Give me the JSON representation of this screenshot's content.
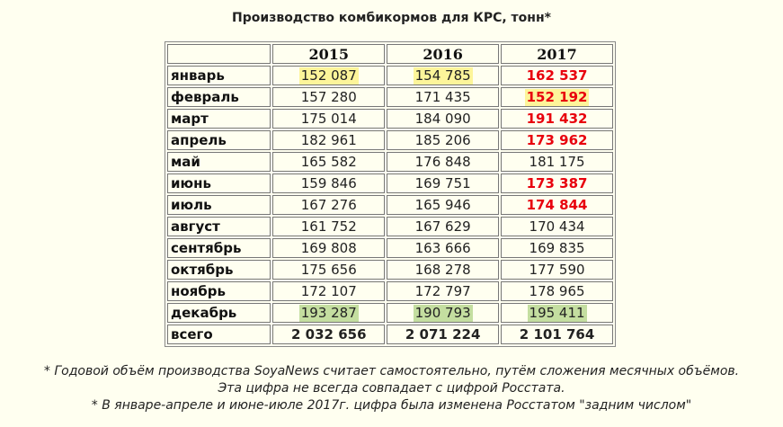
{
  "title": "Производство комбикормов для КРС, тонн*",
  "colors": {
    "highlight_yellow": "#fdf59a",
    "highlight_green": "#c4dea0",
    "red_text": "#e8000d",
    "background": "#fffff0"
  },
  "table": {
    "header": [
      "",
      "2015",
      "2016",
      "2017"
    ],
    "rows": [
      {
        "month": "январь",
        "values": [
          "152 087",
          "154 785",
          "162 537"
        ],
        "highlight": [
          "yellow",
          "yellow",
          "none"
        ],
        "red": [
          false,
          false,
          true
        ]
      },
      {
        "month": "февраль",
        "values": [
          "157 280",
          "171 435",
          "152 192"
        ],
        "highlight": [
          "none",
          "none",
          "yellow"
        ],
        "red": [
          false,
          false,
          true
        ]
      },
      {
        "month": "март",
        "values": [
          "175 014",
          "184 090",
          "191 432"
        ],
        "highlight": [
          "none",
          "none",
          "none"
        ],
        "red": [
          false,
          false,
          true
        ]
      },
      {
        "month": "апрель",
        "values": [
          "182 961",
          "185 206",
          "173 962"
        ],
        "highlight": [
          "none",
          "none",
          "none"
        ],
        "red": [
          false,
          false,
          true
        ]
      },
      {
        "month": "май",
        "values": [
          "165 582",
          "176 848",
          "181 175"
        ],
        "highlight": [
          "none",
          "none",
          "none"
        ],
        "red": [
          false,
          false,
          false
        ]
      },
      {
        "month": "июнь",
        "values": [
          "159 846",
          "169 751",
          "173 387"
        ],
        "highlight": [
          "none",
          "none",
          "none"
        ],
        "red": [
          false,
          false,
          true
        ]
      },
      {
        "month": "июль",
        "values": [
          "167 276",
          "165 946",
          "174 844"
        ],
        "highlight": [
          "none",
          "none",
          "none"
        ],
        "red": [
          false,
          false,
          true
        ]
      },
      {
        "month": "август",
        "values": [
          "161 752",
          "167 629",
          "170 434"
        ],
        "highlight": [
          "none",
          "none",
          "none"
        ],
        "red": [
          false,
          false,
          false
        ]
      },
      {
        "month": "сентябрь",
        "values": [
          "169 808",
          "163 666",
          "169 835"
        ],
        "highlight": [
          "none",
          "none",
          "none"
        ],
        "red": [
          false,
          false,
          false
        ]
      },
      {
        "month": "октябрь",
        "values": [
          "175 656",
          "168 278",
          "177 590"
        ],
        "highlight": [
          "none",
          "none",
          "none"
        ],
        "red": [
          false,
          false,
          false
        ]
      },
      {
        "month": "ноябрь",
        "values": [
          "172 107",
          "172 797",
          "178 965"
        ],
        "highlight": [
          "none",
          "none",
          "none"
        ],
        "red": [
          false,
          false,
          false
        ]
      },
      {
        "month": "декабрь",
        "values": [
          "193 287",
          "190 793",
          "195 411"
        ],
        "highlight": [
          "green",
          "green",
          "green"
        ],
        "red": [
          false,
          false,
          false
        ]
      }
    ],
    "total": {
      "label": "всего",
      "values": [
        "2 032 656",
        "2 071 224",
        "2 101 764"
      ]
    }
  },
  "notes": [
    "* Годовой объём производства SoyaNews считает самостоятельно, путём сложения месячных объёмов.",
    "Эта цифра не всегда совпадает с цифрой Росстата.",
    "* В январе-апреле и июне-июле 2017г. цифра была изменена Росстатом \"задним числом\""
  ]
}
